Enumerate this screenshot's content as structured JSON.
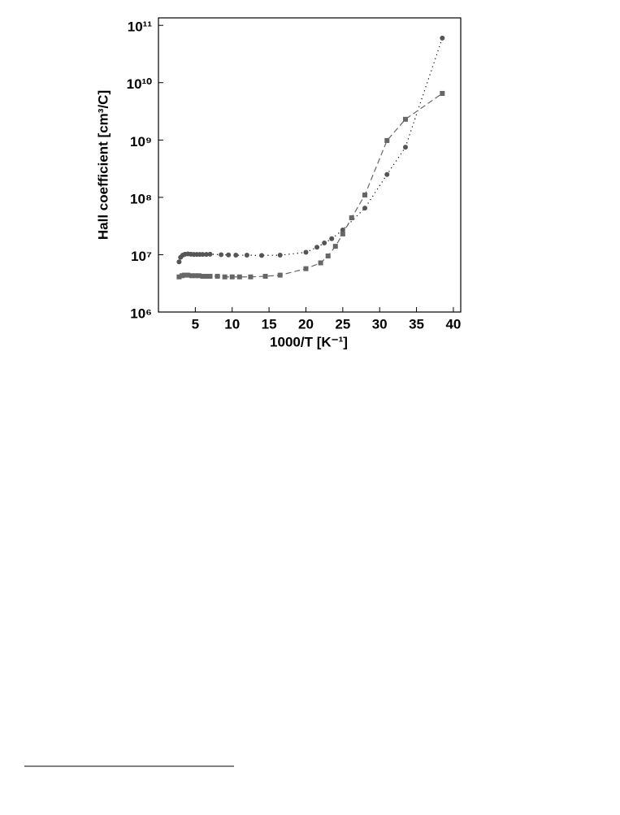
{
  "chart_data": {
    "type": "line",
    "xlabel": "1000/T   [K⁻¹]",
    "ylabel": "Hall coefficient   [cm³/C]",
    "log_y": true,
    "xlim": [
      0,
      41
    ],
    "ylim": [
      1000000,
      135000000000
    ],
    "xticks": [
      5,
      10,
      15,
      20,
      25,
      30,
      35,
      40
    ],
    "yticks": [
      {
        "value": 1000000,
        "label": "10⁶"
      },
      {
        "value": 10000000,
        "label": "10⁷"
      },
      {
        "value": 100000000,
        "label": "10⁸"
      },
      {
        "value": 1000000000,
        "label": "10⁹"
      },
      {
        "value": 10000000000,
        "label": "10¹⁰"
      },
      {
        "value": 100000000000,
        "label": "10¹¹"
      }
    ],
    "series": [
      {
        "marker": "circle",
        "line": "dotted",
        "color": "#555555",
        "x": [
          2.8,
          3.0,
          3.3,
          3.6,
          4.0,
          4.4,
          4.8,
          5.2,
          5.6,
          6.0,
          6.5,
          7.0,
          8.5,
          9.5,
          10.5,
          12,
          14,
          16.5,
          20,
          21.5,
          22.5,
          23.5,
          25,
          28,
          31,
          33.5,
          38.5
        ],
        "values": [
          7500000,
          9000000,
          9800000,
          10200000,
          10300000,
          10200000,
          10100000,
          10100000,
          10100000,
          10100000,
          10100000,
          10200000,
          10000000,
          9900000,
          9800000,
          9800000,
          9700000,
          9800000,
          11000000,
          13500000,
          16000000,
          19000000,
          27000000,
          65000000,
          250000000,
          750000000,
          60000000000
        ]
      },
      {
        "marker": "square",
        "line": "dashed",
        "color": "#666666",
        "x": [
          2.8,
          3.2,
          3.5,
          4.0,
          4.5,
          5.0,
          5.5,
          6.0,
          6.5,
          7.0,
          8.0,
          9.0,
          10.0,
          11.0,
          12.5,
          14.5,
          16.5,
          20,
          22,
          23,
          24,
          25,
          26.2,
          28,
          31,
          33.5,
          38.5
        ],
        "values": [
          4100000,
          4300000,
          4400000,
          4400000,
          4300000,
          4300000,
          4300000,
          4200000,
          4200000,
          4200000,
          4200000,
          4100000,
          4100000,
          4100000,
          4100000,
          4200000,
          4400000,
          5700000,
          7200000,
          9500000,
          14000000,
          23000000,
          44000000,
          110000000,
          980000000,
          2300000000,
          6500000000
        ]
      }
    ]
  }
}
